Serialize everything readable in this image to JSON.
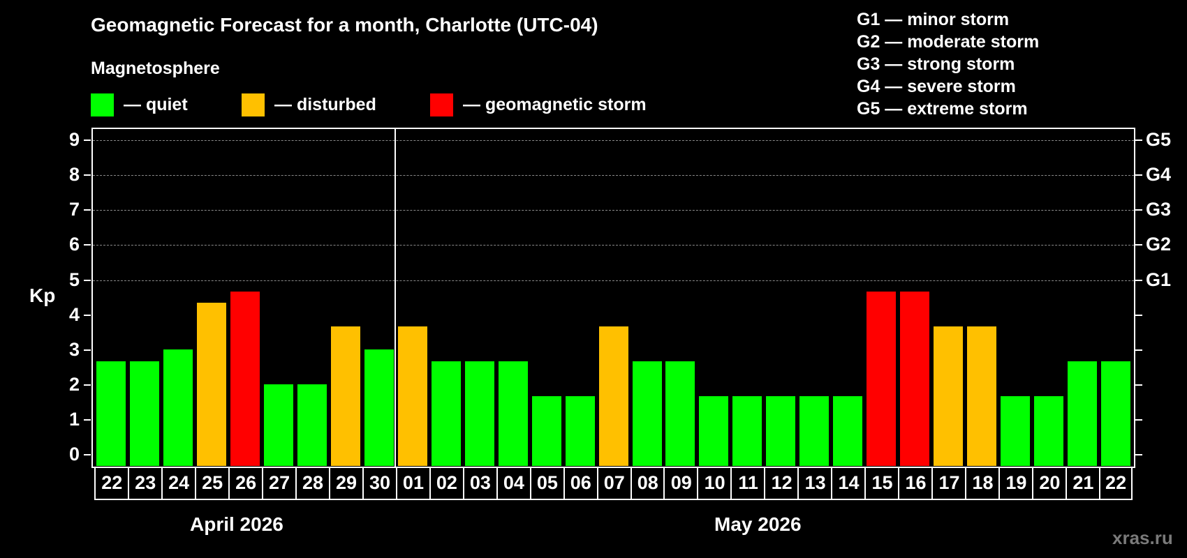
{
  "header": {
    "title": "Geomagnetic Forecast for a month, Charlotte (UTC-04)",
    "subtitle": "Magnetosphere"
  },
  "legend": [
    {
      "label": "— quiet",
      "color": "#00ff00"
    },
    {
      "label": "— disturbed",
      "color": "#ffc000"
    },
    {
      "label": "— geomagnetic storm",
      "color": "#ff0000"
    }
  ],
  "g_legend": [
    "G1 — minor storm",
    "G2 — moderate storm",
    "G3 — strong storm",
    "G4 — severe storm",
    "G5 — extreme storm"
  ],
  "axis": {
    "ylabel": "Kp",
    "yticks": [
      "0",
      "1",
      "2",
      "3",
      "4",
      "5",
      "6",
      "7",
      "8",
      "9"
    ],
    "right_labels": [
      {
        "kp": 5,
        "label": "G1"
      },
      {
        "kp": 6,
        "label": "G2"
      },
      {
        "kp": 7,
        "label": "G3"
      },
      {
        "kp": 8,
        "label": "G4"
      },
      {
        "kp": 9,
        "label": "G5"
      }
    ]
  },
  "months": [
    {
      "label": "April 2026"
    },
    {
      "label": "May 2026"
    }
  ],
  "watermark": "xras.ru",
  "colors": {
    "quiet": "#00ff00",
    "disturbed": "#ffc000",
    "storm": "#ff0000",
    "background": "#000000",
    "grid": "#8a8a8a"
  },
  "chart_data": {
    "type": "bar",
    "title": "Geomagnetic Forecast for a month, Charlotte (UTC-04)",
    "xlabel": "",
    "ylabel": "Kp",
    "ylim": [
      0,
      9
    ],
    "grid": "horizontal dashed at Kp 5-9",
    "legend_position": "top",
    "categories": [
      "22",
      "23",
      "24",
      "25",
      "26",
      "27",
      "28",
      "29",
      "30",
      "01",
      "02",
      "03",
      "04",
      "05",
      "06",
      "07",
      "08",
      "09",
      "10",
      "11",
      "12",
      "13",
      "14",
      "15",
      "16",
      "17",
      "18",
      "19",
      "20",
      "21",
      "22"
    ],
    "months": [
      "April 2026 (22-30)",
      "May 2026 (01-22)"
    ],
    "values": [
      3,
      3,
      3.33,
      4.67,
      5,
      2.33,
      2.33,
      4,
      3.33,
      4,
      3,
      3,
      3,
      2,
      2,
      4,
      3,
      3,
      2,
      2,
      2,
      2,
      2,
      5,
      5,
      4,
      4,
      2,
      2,
      3,
      3
    ],
    "status": [
      "quiet",
      "quiet",
      "quiet",
      "disturbed",
      "storm",
      "quiet",
      "quiet",
      "disturbed",
      "quiet",
      "disturbed",
      "quiet",
      "quiet",
      "quiet",
      "quiet",
      "quiet",
      "disturbed",
      "quiet",
      "quiet",
      "quiet",
      "quiet",
      "quiet",
      "quiet",
      "quiet",
      "storm",
      "storm",
      "disturbed",
      "disturbed",
      "quiet",
      "quiet",
      "quiet",
      "quiet"
    ],
    "right_axis": {
      "5": "G1",
      "6": "G2",
      "7": "G3",
      "8": "G4",
      "9": "G5"
    }
  }
}
